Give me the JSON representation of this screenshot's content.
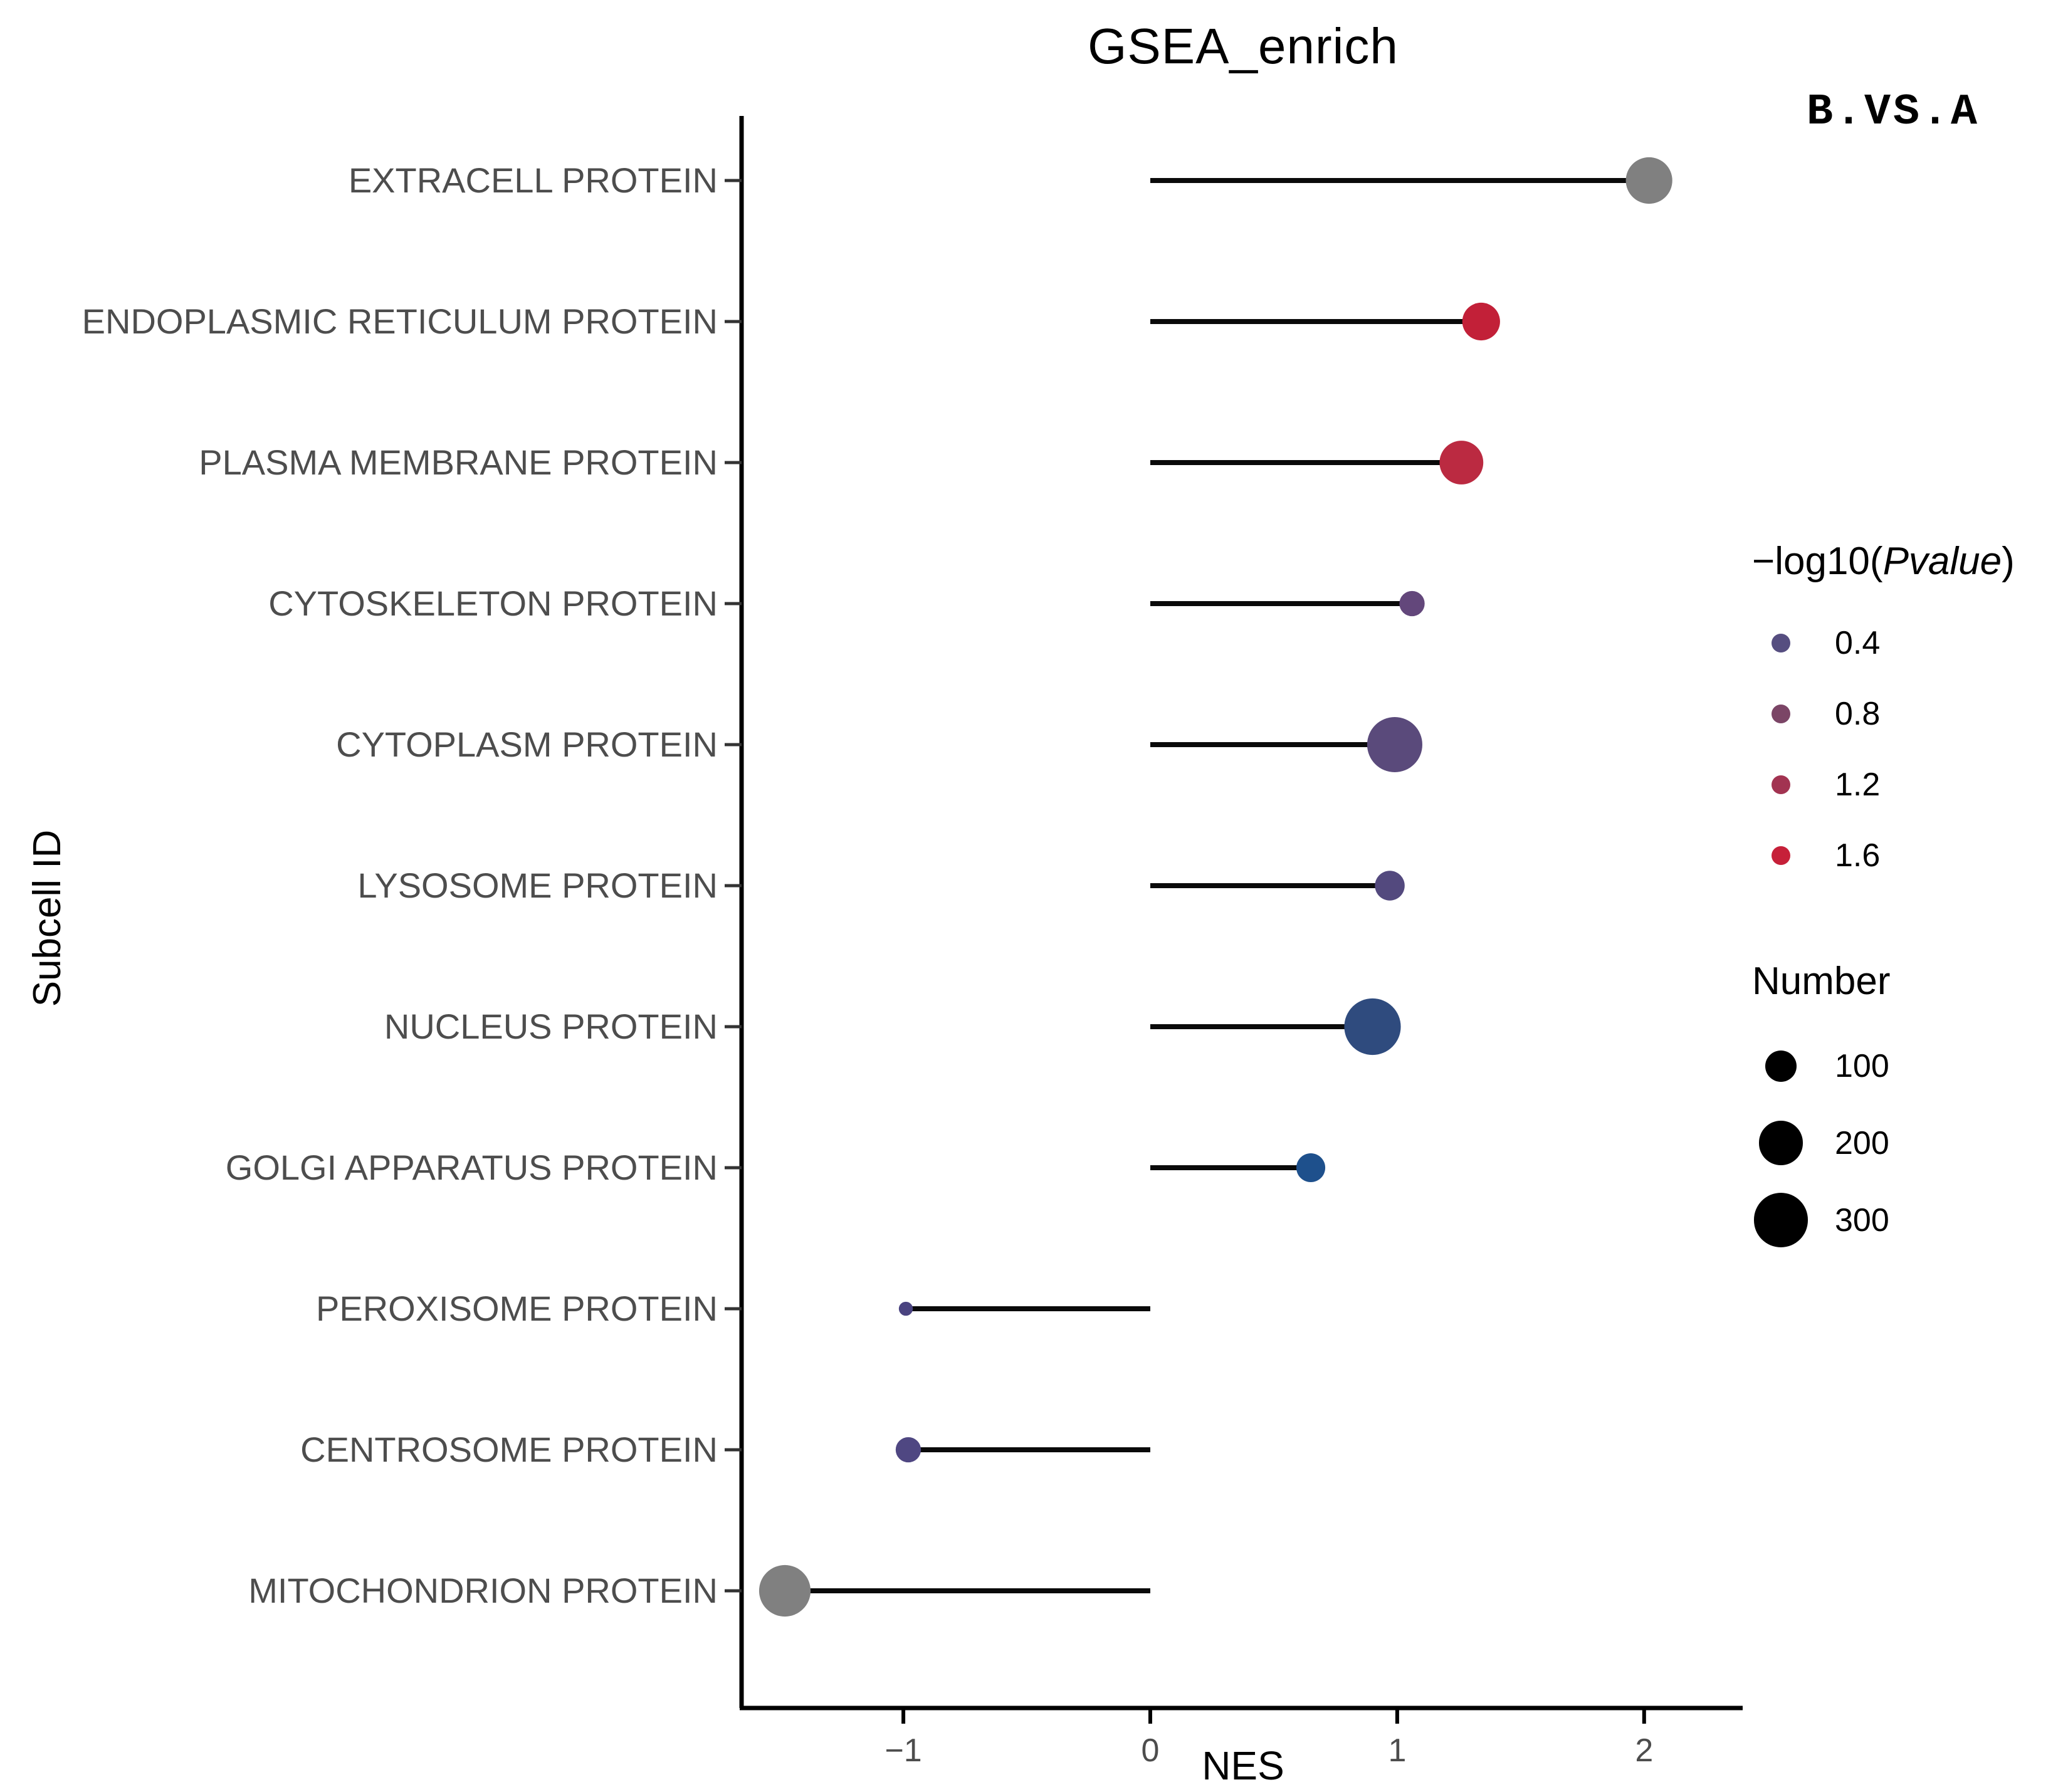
{
  "title": "GSEA_enrich",
  "comparison_label": "B.VS.A",
  "axes": {
    "x_label": "NES",
    "y_label": "Subcell ID",
    "x_ticks": [
      -1,
      0,
      1,
      2
    ],
    "x_range": [
      -1.66,
      2.4
    ]
  },
  "legend_pvalue": {
    "title_prefix": "−log10(",
    "title_italic": "Pvalue",
    "title_suffix": ")",
    "items": [
      {
        "label": "0.4",
        "color": "#564E80"
      },
      {
        "label": "0.8",
        "color": "#7B4566"
      },
      {
        "label": "1.2",
        "color": "#A23351"
      },
      {
        "label": "1.6",
        "color": "#C62039"
      }
    ]
  },
  "legend_number": {
    "title": "Number",
    "dot_color": "#000000",
    "items": [
      {
        "label": "100",
        "n": 100
      },
      {
        "label": "200",
        "n": 200
      },
      {
        "label": "300",
        "n": 300
      }
    ]
  },
  "chart_data": {
    "type": "lollipop",
    "title": "GSEA_enrich",
    "xlabel": "NES",
    "ylabel": "Subcell ID",
    "xlim": [
      -1.66,
      2.4
    ],
    "x_ticks": [
      -1,
      0,
      1,
      2
    ],
    "grid": false,
    "legend_position": "right",
    "size_scale": "radius_px = 2.5 * sqrt(Number)",
    "rows": [
      {
        "category": "EXTRACELL PROTEIN",
        "nes": 2.02,
        "number": 220,
        "neg_log10_pvalue": null,
        "color": "#808080"
      },
      {
        "category": "ENDOPLASMIC RETICULUM PROTEIN",
        "nes": 1.34,
        "number": 145,
        "neg_log10_pvalue": 1.55,
        "color": "#C22038"
      },
      {
        "category": "PLASMA MEMBRANE PROTEIN",
        "nes": 1.26,
        "number": 195,
        "neg_log10_pvalue": 1.35,
        "color": "#BB2A41"
      },
      {
        "category": "CYTOSKELETON PROTEIN",
        "nes": 1.06,
        "number": 65,
        "neg_log10_pvalue": 0.55,
        "color": "#63477B"
      },
      {
        "category": "CYTOPLASM PROTEIN",
        "nes": 0.99,
        "number": 310,
        "neg_log10_pvalue": 0.45,
        "color": "#5A4A7B"
      },
      {
        "category": "LYSOSOME PROTEIN",
        "nes": 0.97,
        "number": 90,
        "neg_log10_pvalue": 0.42,
        "color": "#53497E"
      },
      {
        "category": "NUCLEUS PROTEIN",
        "nes": 0.9,
        "number": 325,
        "neg_log10_pvalue": 0.25,
        "color": "#2F4B7E"
      },
      {
        "category": "GOLGI APPARATUS PROTEIN",
        "nes": 0.65,
        "number": 85,
        "neg_log10_pvalue": 0.1,
        "color": "#1E508C"
      },
      {
        "category": "PEROXISOME PROTEIN",
        "nes": -0.99,
        "number": 20,
        "neg_log10_pvalue": 0.4,
        "color": "#4A4380"
      },
      {
        "category": "CENTROSOME PROTEIN",
        "nes": -0.98,
        "number": 65,
        "neg_log10_pvalue": 0.42,
        "color": "#4F4782"
      },
      {
        "category": "MITOCHONDRION PROTEIN",
        "nes": -1.48,
        "number": 270,
        "neg_log10_pvalue": null,
        "color": "#808080"
      }
    ]
  },
  "colors": {
    "axis_text": "#4D4D4D",
    "axis_line": "#000000",
    "stem": "#0A0A0A"
  }
}
